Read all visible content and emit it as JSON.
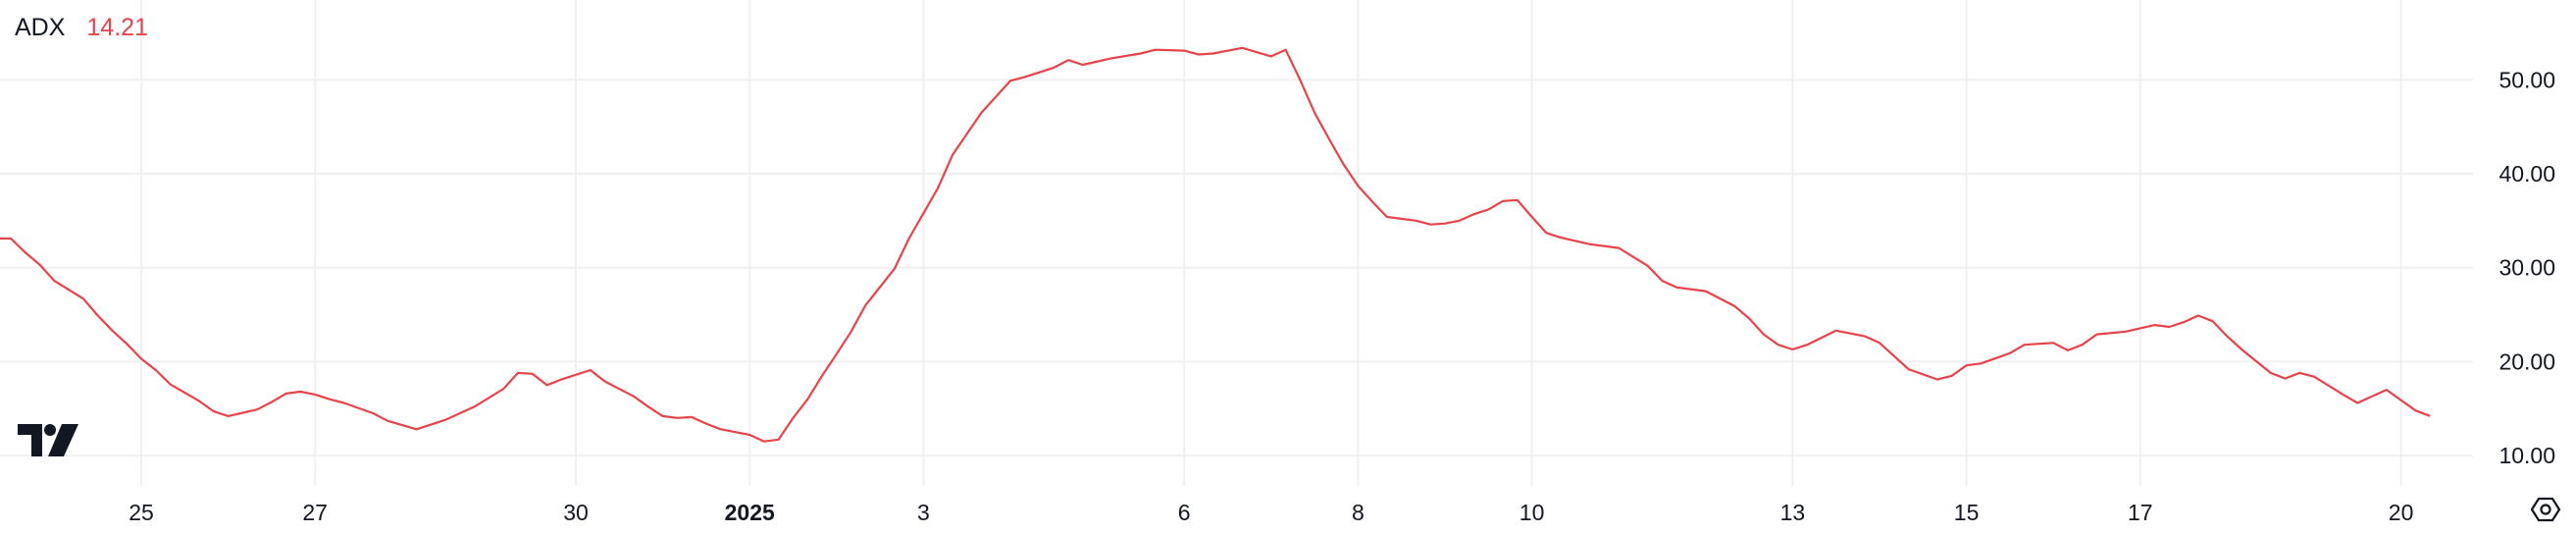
{
  "legend": {
    "name": "ADX",
    "value": "14.21"
  },
  "colors": {
    "line": "#e8434b",
    "grid": "#f0f0f0",
    "text": "#131722"
  },
  "icons": {
    "logo": "tradingview-logo-icon",
    "settings": "settings-hexagon-icon"
  },
  "chart_data": {
    "type": "line",
    "title": "",
    "xlabel": "",
    "ylabel": "",
    "grid": true,
    "ylim": [
      8,
      56
    ],
    "y_ticks": [
      "10.00",
      "20.00",
      "30.00",
      "40.00",
      "50.00"
    ],
    "y_tick_values": [
      10,
      20,
      30,
      40,
      50
    ],
    "x_ticks": [
      {
        "label": "25",
        "date": "2024-12-25",
        "bold": false
      },
      {
        "label": "27",
        "date": "2024-12-27",
        "bold": false
      },
      {
        "label": "30",
        "date": "2024-12-30",
        "bold": false
      },
      {
        "label": "2025",
        "date": "2025-01-01",
        "bold": true
      },
      {
        "label": "3",
        "date": "2025-01-03",
        "bold": false
      },
      {
        "label": "6",
        "date": "2025-01-06",
        "bold": false
      },
      {
        "label": "8",
        "date": "2025-01-08",
        "bold": false
      },
      {
        "label": "10",
        "date": "2025-01-10",
        "bold": false
      },
      {
        "label": "13",
        "date": "2025-01-13",
        "bold": false
      },
      {
        "label": "15",
        "date": "2025-01-15",
        "bold": false
      },
      {
        "label": "17",
        "date": "2025-01-17",
        "bold": false
      },
      {
        "label": "20",
        "date": "2025-01-20",
        "bold": false
      }
    ],
    "series": [
      {
        "name": "ADX",
        "color": "#e8434b",
        "points": [
          [
            "2024-12-23 08:00",
            33.1
          ],
          [
            "2024-12-23 12:00",
            33.1
          ],
          [
            "2024-12-23 16:00",
            31.6
          ],
          [
            "2024-12-23 20:00",
            30.3
          ],
          [
            "2024-12-24 00:00",
            28.6
          ],
          [
            "2024-12-24 08:00",
            26.7
          ],
          [
            "2024-12-24 12:00",
            24.9
          ],
          [
            "2024-12-24 16:00",
            23.3
          ],
          [
            "2024-12-24 20:00",
            21.9
          ],
          [
            "2024-12-25 00:00",
            20.3
          ],
          [
            "2024-12-25 04:00",
            19.1
          ],
          [
            "2024-12-25 08:00",
            17.6
          ],
          [
            "2024-12-25 16:00",
            15.8
          ],
          [
            "2024-12-25 20:00",
            14.7
          ],
          [
            "2024-12-26 00:00",
            14.2
          ],
          [
            "2024-12-26 08:00",
            14.9
          ],
          [
            "2024-12-26 12:00",
            15.7
          ],
          [
            "2024-12-26 16:00",
            16.6
          ],
          [
            "2024-12-26 20:00",
            16.8
          ],
          [
            "2024-12-27 00:00",
            16.5
          ],
          [
            "2024-12-27 04:00",
            16.0
          ],
          [
            "2024-12-27 08:00",
            15.6
          ],
          [
            "2024-12-27 16:00",
            14.5
          ],
          [
            "2024-12-27 20:00",
            13.7
          ],
          [
            "2024-12-28 04:00",
            12.8
          ],
          [
            "2024-12-28 12:00",
            13.8
          ],
          [
            "2024-12-28 20:00",
            15.2
          ],
          [
            "2024-12-29 04:00",
            17.1
          ],
          [
            "2024-12-29 08:00",
            18.8
          ],
          [
            "2024-12-29 12:00",
            18.7
          ],
          [
            "2024-12-29 16:00",
            17.5
          ],
          [
            "2024-12-29 20:00",
            18.1
          ],
          [
            "2024-12-30 04:00",
            19.1
          ],
          [
            "2024-12-30 08:00",
            17.9
          ],
          [
            "2024-12-30 16:00",
            16.3
          ],
          [
            "2024-12-30 20:00",
            15.2
          ],
          [
            "2024-12-31 00:00",
            14.2
          ],
          [
            "2024-12-31 04:00",
            14.0
          ],
          [
            "2024-12-31 08:00",
            14.1
          ],
          [
            "2024-12-31 12:00",
            13.4
          ],
          [
            "2024-12-31 16:00",
            12.8
          ],
          [
            "2025-01-01 00:00",
            12.2
          ],
          [
            "2025-01-01 04:00",
            11.5
          ],
          [
            "2025-01-01 08:00",
            11.7
          ],
          [
            "2025-01-01 12:00",
            14.0
          ],
          [
            "2025-01-01 16:00",
            16.0
          ],
          [
            "2025-01-01 20:00",
            18.5
          ],
          [
            "2025-01-02 00:00",
            20.8
          ],
          [
            "2025-01-02 04:00",
            23.2
          ],
          [
            "2025-01-02 08:00",
            26.0
          ],
          [
            "2025-01-02 16:00",
            29.9
          ],
          [
            "2025-01-02 20:00",
            33.1
          ],
          [
            "2025-01-03 04:00",
            38.5
          ],
          [
            "2025-01-03 08:00",
            42.0
          ],
          [
            "2025-01-03 16:00",
            46.5
          ],
          [
            "2025-01-04 00:00",
            49.9
          ],
          [
            "2025-01-04 04:00",
            50.3
          ],
          [
            "2025-01-04 12:00",
            51.3
          ],
          [
            "2025-01-04 16:00",
            52.1
          ],
          [
            "2025-01-04 20:00",
            51.6
          ],
          [
            "2025-01-05 04:00",
            52.3
          ],
          [
            "2025-01-05 12:00",
            52.8
          ],
          [
            "2025-01-05 16:00",
            53.2
          ],
          [
            "2025-01-06 00:00",
            53.1
          ],
          [
            "2025-01-06 04:00",
            52.7
          ],
          [
            "2025-01-06 08:00",
            52.8
          ],
          [
            "2025-01-06 16:00",
            53.4
          ],
          [
            "2025-01-07 00:00",
            52.5
          ],
          [
            "2025-01-07 04:00",
            53.2
          ],
          [
            "2025-01-07 08:00",
            50.0
          ],
          [
            "2025-01-07 12:00",
            46.5
          ],
          [
            "2025-01-07 16:00",
            43.7
          ],
          [
            "2025-01-07 20:00",
            41.0
          ],
          [
            "2025-01-08 00:00",
            38.7
          ],
          [
            "2025-01-08 04:00",
            37.0
          ],
          [
            "2025-01-08 08:00",
            35.4
          ],
          [
            "2025-01-08 16:00",
            35.0
          ],
          [
            "2025-01-08 20:00",
            34.6
          ],
          [
            "2025-01-09 00:00",
            34.7
          ],
          [
            "2025-01-09 04:00",
            35.0
          ],
          [
            "2025-01-09 08:00",
            35.7
          ],
          [
            "2025-01-09 12:00",
            36.2
          ],
          [
            "2025-01-09 16:00",
            37.1
          ],
          [
            "2025-01-09 20:00",
            37.2
          ],
          [
            "2025-01-10 00:00",
            35.4
          ],
          [
            "2025-01-10 04:00",
            33.7
          ],
          [
            "2025-01-10 08:00",
            33.2
          ],
          [
            "2025-01-10 16:00",
            32.5
          ],
          [
            "2025-01-11 00:00",
            32.1
          ],
          [
            "2025-01-11 08:00",
            30.2
          ],
          [
            "2025-01-11 12:00",
            28.6
          ],
          [
            "2025-01-11 16:00",
            27.9
          ],
          [
            "2025-01-12 00:00",
            27.5
          ],
          [
            "2025-01-12 08:00",
            25.9
          ],
          [
            "2025-01-12 12:00",
            24.6
          ],
          [
            "2025-01-12 16:00",
            22.9
          ],
          [
            "2025-01-12 20:00",
            21.8
          ],
          [
            "2025-01-13 00:00",
            21.3
          ],
          [
            "2025-01-13 04:00",
            21.8
          ],
          [
            "2025-01-13 12:00",
            23.3
          ],
          [
            "2025-01-13 20:00",
            22.7
          ],
          [
            "2025-01-14 00:00",
            22.0
          ],
          [
            "2025-01-14 08:00",
            19.2
          ],
          [
            "2025-01-14 16:00",
            18.1
          ],
          [
            "2025-01-14 20:00",
            18.5
          ],
          [
            "2025-01-15 00:00",
            19.6
          ],
          [
            "2025-01-15 04:00",
            19.8
          ],
          [
            "2025-01-15 12:00",
            20.9
          ],
          [
            "2025-01-15 16:00",
            21.8
          ],
          [
            "2025-01-16 00:00",
            22.0
          ],
          [
            "2025-01-16 04:00",
            21.2
          ],
          [
            "2025-01-16 08:00",
            21.8
          ],
          [
            "2025-01-16 12:00",
            22.9
          ],
          [
            "2025-01-16 20:00",
            23.2
          ],
          [
            "2025-01-17 04:00",
            23.9
          ],
          [
            "2025-01-17 08:00",
            23.7
          ],
          [
            "2025-01-17 12:00",
            24.2
          ],
          [
            "2025-01-17 16:00",
            24.9
          ],
          [
            "2025-01-17 20:00",
            24.3
          ],
          [
            "2025-01-18 00:00",
            22.7
          ],
          [
            "2025-01-18 04:00",
            21.3
          ],
          [
            "2025-01-18 12:00",
            18.8
          ],
          [
            "2025-01-18 16:00",
            18.2
          ],
          [
            "2025-01-18 20:00",
            18.8
          ],
          [
            "2025-01-19 00:00",
            18.4
          ],
          [
            "2025-01-19 08:00",
            16.5
          ],
          [
            "2025-01-19 12:00",
            15.6
          ],
          [
            "2025-01-19 20:00",
            17.0
          ],
          [
            "2025-01-20 04:00",
            14.8
          ],
          [
            "2025-01-20 08:00",
            14.21
          ]
        ]
      }
    ]
  }
}
